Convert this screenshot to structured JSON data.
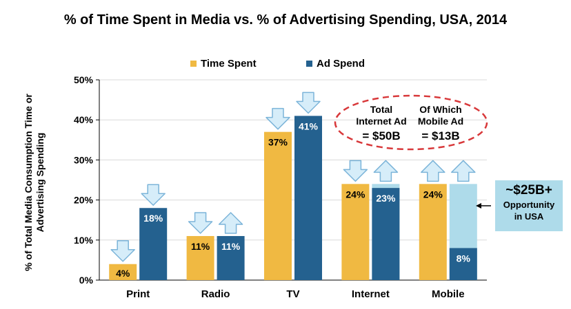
{
  "page": {
    "title": "% of Time Spent in Media vs. % of Advertising Spending, USA, 2014"
  },
  "colors": {
    "time_spent": "#f0b942",
    "ad_spend": "#24618f",
    "opportunity": "#aedbea",
    "arrow_fill": "#d6edf9",
    "arrow_stroke": "#7bb4d9",
    "ellipse": "#d8383a",
    "text": "#000000"
  },
  "annotations": {
    "internet_total_line1": "Total",
    "internet_total_line2": "Internet Ad",
    "internet_total_line3": "= $50B",
    "mobile_total_line1": "Of Which",
    "mobile_total_line2": "Mobile Ad",
    "mobile_total_line3": "= $13B",
    "opportunity_main": "~$25B+",
    "opportunity_sub1": "Opportunity",
    "opportunity_sub2": "in USA"
  },
  "chart_data": {
    "type": "bar",
    "title": "% of Time Spent in Media vs. % of Advertising Spending, USA, 2014",
    "ylabel": "% of Total Media Consumption Time or Advertising Spending",
    "xlabel": "",
    "ylim": [
      0,
      50
    ],
    "yticks": [
      "0%",
      "10%",
      "20%",
      "30%",
      "40%",
      "50%"
    ],
    "grid": true,
    "legend_position": "top",
    "categories": [
      "Print",
      "Radio",
      "TV",
      "Internet",
      "Mobile"
    ],
    "series": [
      {
        "name": "Time Spent",
        "values": [
          4,
          11,
          37,
          24,
          24
        ],
        "labels": [
          "4%",
          "11%",
          "37%",
          "24%",
          "24%"
        ],
        "arrows": [
          "down",
          "down",
          "down",
          "down",
          "up"
        ]
      },
      {
        "name": "Ad Spend",
        "values": [
          18,
          11,
          41,
          23,
          8
        ],
        "labels": [
          "18%",
          "11%",
          "41%",
          "23%",
          "8%"
        ],
        "arrows": [
          "down",
          "up",
          "down",
          "up",
          "up"
        ]
      }
    ],
    "gap_to_time_spent": [
      null,
      null,
      null,
      24,
      24
    ]
  }
}
